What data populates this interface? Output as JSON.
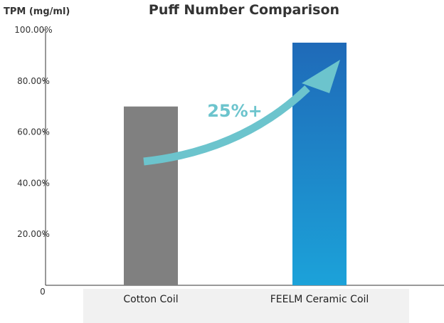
{
  "chart_data": {
    "type": "bar",
    "title": "Puff Number Comparison",
    "ylabel": "TPM (mg/ml)",
    "xlabel": "",
    "categories": [
      "Cotton Coil",
      "FEELM Ceramic Coil"
    ],
    "values": [
      70,
      95
    ],
    "ylim": [
      0,
      100
    ],
    "y_ticks": [
      {
        "value": 20,
        "label": "20.00%"
      },
      {
        "value": 40,
        "label": "40.00%"
      },
      {
        "value": 60,
        "label": "60.00%"
      },
      {
        "value": 80,
        "label": "80.00%"
      },
      {
        "value": 100,
        "label": "100.00%"
      }
    ],
    "origin_label": "0",
    "grid": false,
    "annotation": "25%+",
    "colors": {
      "cotton": "#808080",
      "ceramic_top": "#1f6ab8",
      "ceramic_bottom": "#1ca2d9",
      "arrow": "#6cc4cd",
      "axis": "#333333",
      "category_band": "#f1f1f1"
    }
  }
}
